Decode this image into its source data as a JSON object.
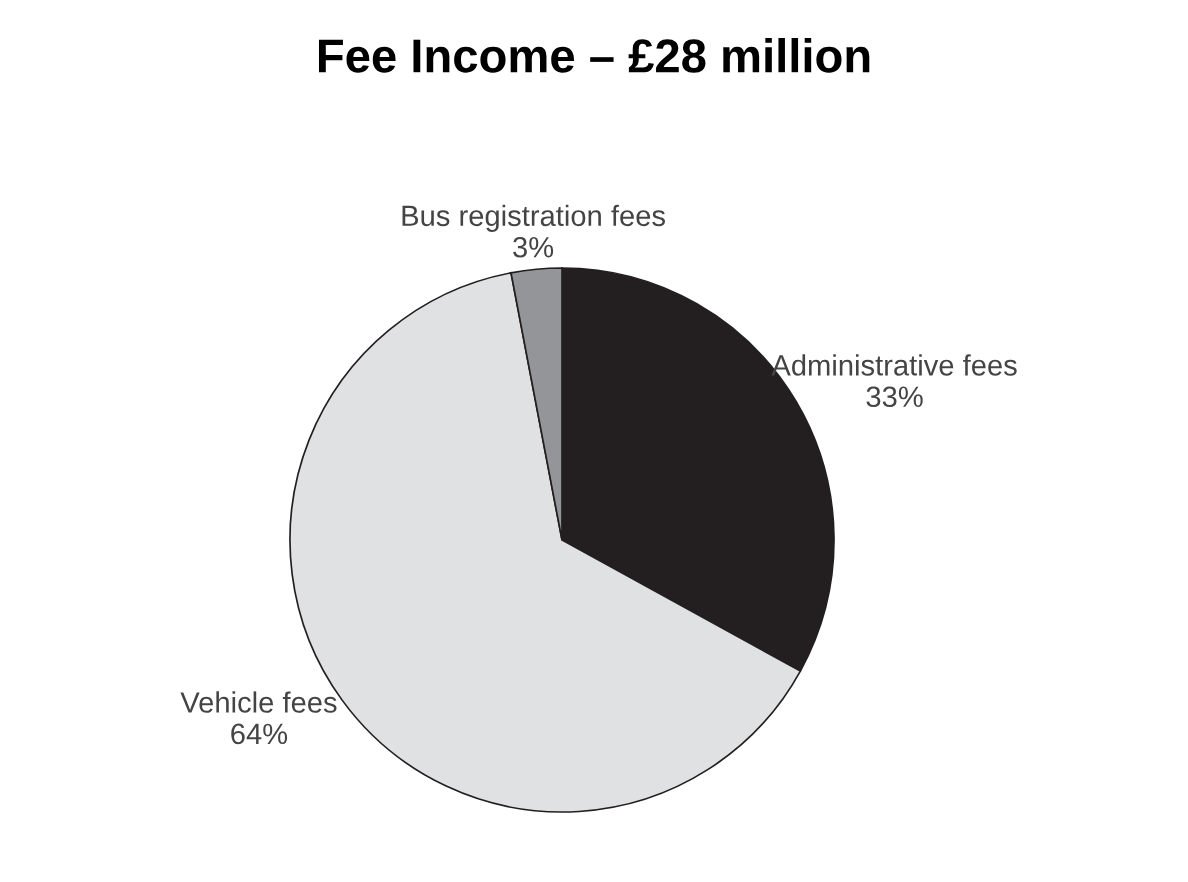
{
  "chart_data": {
    "type": "pie",
    "title": "Fee Income – £28 million",
    "categories": [
      "Administrative fees",
      "Vehicle fees",
      "Bus registration fees"
    ],
    "values": [
      33,
      64,
      3
    ],
    "value_labels": [
      "33%",
      "64%",
      "3%"
    ],
    "colors": [
      "#231f20",
      "#e0e1e3",
      "#939598"
    ]
  }
}
